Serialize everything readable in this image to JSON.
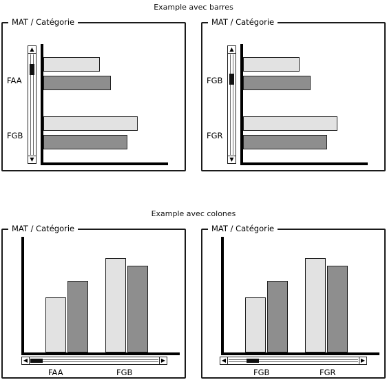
{
  "colors": {
    "light_bar": "#e2e2e2",
    "dark_bar": "#8e8e8e"
  },
  "sections": {
    "bars_title": "Example avec barres",
    "columns_title": "Example avec colones"
  },
  "panels": [
    {
      "title": "MAT / Catégorie",
      "scroll": "vertical",
      "categories": [
        "FAA",
        "FGB"
      ]
    },
    {
      "title": "MAT / Catégorie",
      "scroll": "vertical",
      "categories": [
        "FGB",
        "FGR"
      ]
    },
    {
      "title": "MAT / Catégorie",
      "scroll": "horizontal",
      "categories": [
        "FAA",
        "FGB"
      ]
    },
    {
      "title": "MAT / Catégorie",
      "scroll": "horizontal",
      "categories": [
        "FGB",
        "FGR"
      ]
    }
  ],
  "chart_data": [
    {
      "type": "bar",
      "orientation": "horizontal",
      "title": "MAT / Catégorie",
      "categories": [
        "FAA",
        "FGB"
      ],
      "series": [
        {
          "values": [
            5.5,
            9.2
          ]
        },
        {
          "values": [
            6.6,
            8.2
          ]
        }
      ],
      "xlim": [
        0,
        12
      ]
    },
    {
      "type": "bar",
      "orientation": "horizontal",
      "title": "MAT / Catégorie",
      "categories": [
        "FGB",
        "FGR"
      ],
      "series": [
        {
          "values": [
            5.5,
            9.2
          ]
        },
        {
          "values": [
            6.6,
            8.2
          ]
        }
      ],
      "xlim": [
        0,
        12
      ]
    },
    {
      "type": "bar",
      "orientation": "vertical",
      "title": "MAT / Catégorie",
      "categories": [
        "FAA",
        "FGB"
      ],
      "series": [
        {
          "values": [
            5.5,
            9.4
          ]
        },
        {
          "values": [
            7.1,
            8.6
          ]
        }
      ],
      "ylim": [
        0,
        11.5
      ]
    },
    {
      "type": "bar",
      "orientation": "vertical",
      "title": "MAT / Catégorie",
      "categories": [
        "FGB",
        "FGR"
      ],
      "series": [
        {
          "values": [
            5.5,
            9.4
          ]
        },
        {
          "values": [
            7.1,
            8.6
          ]
        }
      ],
      "ylim": [
        0,
        11.5
      ]
    }
  ]
}
